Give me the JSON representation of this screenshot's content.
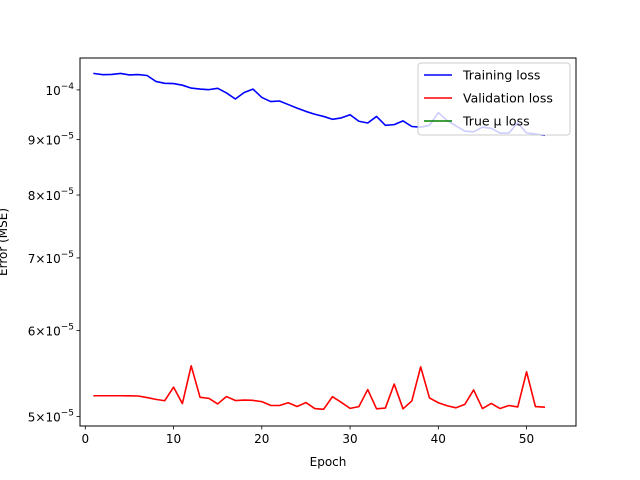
{
  "chart_data": {
    "type": "line",
    "title": "",
    "xlabel": "Epoch",
    "ylabel": "Error (MSE)",
    "xlim": [
      -0.6,
      55.6
    ],
    "ylim": [
      4.9e-05,
      0.000107
    ],
    "yscale": "log",
    "grid": false,
    "legend_position": "top-right",
    "xticks": [
      {
        "value": 0,
        "label": "0"
      },
      {
        "value": 10,
        "label": "10"
      },
      {
        "value": 20,
        "label": "20"
      },
      {
        "value": 30,
        "label": "30"
      },
      {
        "value": 40,
        "label": "40"
      },
      {
        "value": 50,
        "label": "50"
      }
    ],
    "yticks": [
      {
        "value": 5e-05,
        "mantissa": "5",
        "exp": "−5"
      },
      {
        "value": 6e-05,
        "mantissa": "6",
        "exp": "−5"
      },
      {
        "value": 7e-05,
        "mantissa": "7",
        "exp": "−5"
      },
      {
        "value": 8e-05,
        "mantissa": "8",
        "exp": "−5"
      },
      {
        "value": 9e-05,
        "mantissa": "9",
        "exp": "−5"
      },
      {
        "value": 0.0001,
        "mantissa": "",
        "exp": "−4"
      }
    ],
    "series": [
      {
        "name": "Training loss",
        "color": "#0000ff",
        "x": [
          1,
          2,
          3,
          4,
          5,
          6,
          7,
          8,
          9,
          10,
          11,
          12,
          13,
          14,
          15,
          16,
          17,
          18,
          19,
          20,
          21,
          22,
          23,
          24,
          25,
          26,
          27,
          28,
          29,
          30,
          31,
          32,
          33,
          34,
          35,
          36,
          37,
          38,
          39,
          40,
          41,
          42,
          43,
          44,
          45,
          46,
          47,
          48,
          49,
          50,
          51,
          52
        ],
        "values": [
          0.00010354,
          0.00010327,
          0.00010333,
          0.00010356,
          0.00010322,
          0.0001033,
          0.0001031,
          0.0001018,
          0.0001014,
          0.00010135,
          0.000101,
          0.00010038,
          0.00010017,
          0.00010005,
          0.00010034,
          9.935e-05,
          9.808e-05,
          9.944e-05,
          0.00010016,
          9.841e-05,
          9.755e-05,
          9.767e-05,
          9.693e-05,
          9.62e-05,
          9.553e-05,
          9.496e-05,
          9.452e-05,
          9.395e-05,
          9.422e-05,
          9.486e-05,
          9.356e-05,
          9.321e-05,
          9.452e-05,
          9.276e-05,
          9.289e-05,
          9.363e-05,
          9.252e-05,
          9.239e-05,
          9.276e-05,
          9.528e-05,
          9.369e-05,
          9.264e-05,
          9.16e-05,
          9.148e-05,
          9.239e-05,
          9.216e-05,
          9.121e-05,
          9.127e-05,
          9.323e-05,
          9.126e-05,
          9.105e-05,
          9.082e-05
        ]
      },
      {
        "name": "Validation loss",
        "color": "#ff0000",
        "x": [
          1,
          2,
          3,
          4,
          5,
          6,
          7,
          8,
          9,
          10,
          11,
          12,
          13,
          14,
          15,
          16,
          17,
          18,
          19,
          20,
          21,
          22,
          23,
          24,
          25,
          26,
          27,
          28,
          29,
          30,
          31,
          32,
          33,
          34,
          35,
          36,
          37,
          38,
          39,
          40,
          41,
          42,
          43,
          44,
          45,
          46,
          47,
          48,
          49,
          50,
          51,
          52
        ],
        "values": [
          5.225e-05,
          5.225e-05,
          5.225e-05,
          5.225e-05,
          5.224e-05,
          5.222e-05,
          5.205e-05,
          5.185e-05,
          5.17e-05,
          5.321e-05,
          5.139e-05,
          5.568e-05,
          5.208e-05,
          5.196e-05,
          5.135e-05,
          5.216e-05,
          5.172e-05,
          5.177e-05,
          5.174e-05,
          5.16e-05,
          5.119e-05,
          5.118e-05,
          5.148e-05,
          5.107e-05,
          5.15e-05,
          5.085e-05,
          5.077e-05,
          5.214e-05,
          5.153e-05,
          5.087e-05,
          5.106e-05,
          5.294e-05,
          5.082e-05,
          5.09e-05,
          5.356e-05,
          5.082e-05,
          5.168e-05,
          5.555e-05,
          5.201e-05,
          5.148e-05,
          5.115e-05,
          5.093e-05,
          5.13e-05,
          5.29e-05,
          5.085e-05,
          5.141e-05,
          5.085e-05,
          5.118e-05,
          5.102e-05,
          5.497e-05,
          5.106e-05,
          5.1e-05
        ]
      },
      {
        "name": "True μ loss",
        "color": "#008000",
        "x": [],
        "values": []
      }
    ]
  }
}
